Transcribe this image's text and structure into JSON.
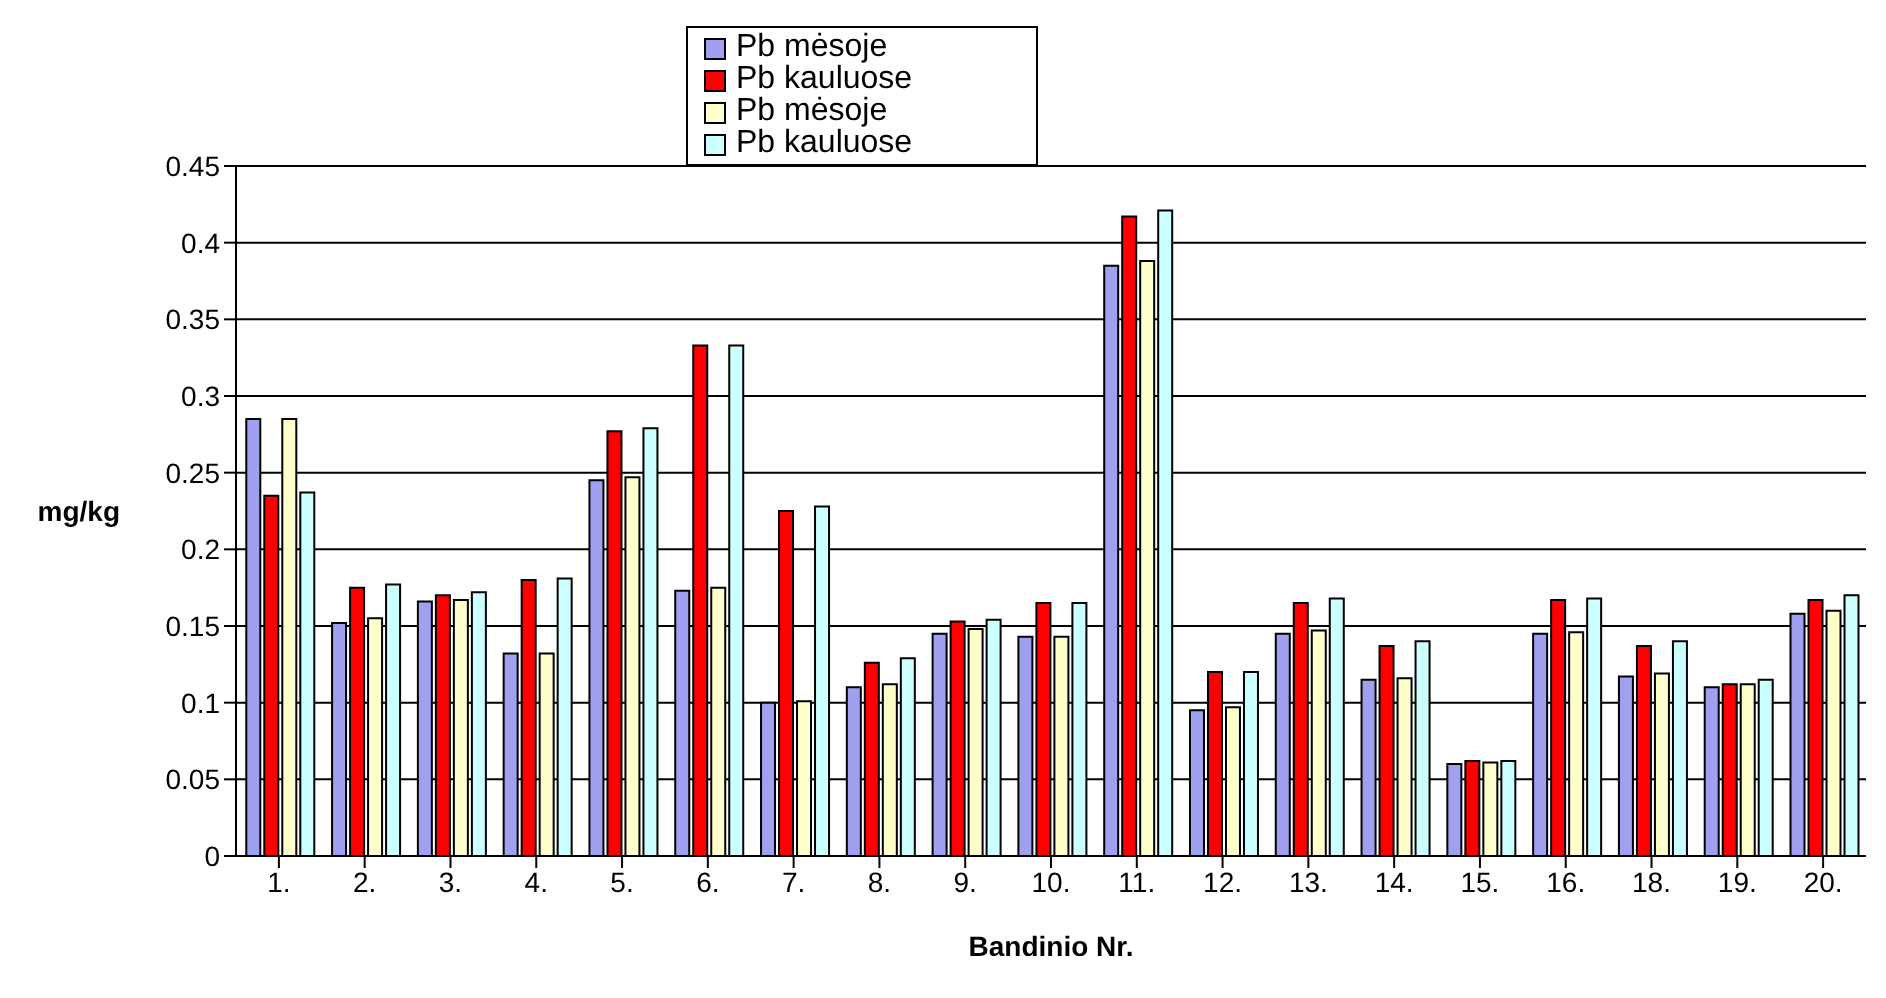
{
  "chart_data": {
    "type": "bar",
    "xlabel": "Bandinio Nr.",
    "ylabel": "mg/kg",
    "categories": [
      "1.",
      "2.",
      "3.",
      "4.",
      "5.",
      "6.",
      "7.",
      "8.",
      "9.",
      "10.",
      "11.",
      "12.",
      "13.",
      "14.",
      "15.",
      "16.",
      "18.",
      "19.",
      "20."
    ],
    "series": [
      {
        "name": "Pb mėsoje",
        "color": "#a0a0f0",
        "values": [
          0.285,
          0.152,
          0.166,
          0.132,
          0.245,
          0.173,
          0.1,
          0.11,
          0.145,
          0.143,
          0.385,
          0.095,
          0.145,
          0.115,
          0.06,
          0.145,
          0.117,
          0.11,
          0.158
        ]
      },
      {
        "name": "Pb kauluose",
        "color": "#ff0000",
        "values": [
          0.235,
          0.175,
          0.17,
          0.18,
          0.277,
          0.333,
          0.225,
          0.126,
          0.153,
          0.165,
          0.417,
          0.12,
          0.165,
          0.137,
          0.062,
          0.167,
          0.137,
          0.112,
          0.167
        ]
      },
      {
        "name": "Pb mėsoje",
        "color": "#ffffcc",
        "values": [
          0.285,
          0.155,
          0.167,
          0.132,
          0.247,
          0.175,
          0.101,
          0.112,
          0.148,
          0.143,
          0.388,
          0.097,
          0.147,
          0.116,
          0.061,
          0.146,
          0.119,
          0.112,
          0.16
        ]
      },
      {
        "name": "Pb kauluose",
        "color": "#ccffff",
        "values": [
          0.237,
          0.177,
          0.172,
          0.181,
          0.279,
          0.333,
          0.228,
          0.129,
          0.154,
          0.165,
          0.421,
          0.12,
          0.168,
          0.14,
          0.062,
          0.168,
          0.14,
          0.115,
          0.17
        ]
      }
    ],
    "ylim": [
      0,
      0.45
    ],
    "yticks": [
      0,
      0.05,
      0.1,
      0.15,
      0.2,
      0.25,
      0.3,
      0.35,
      0.4,
      0.45
    ],
    "grid": "y",
    "legend": "top"
  }
}
